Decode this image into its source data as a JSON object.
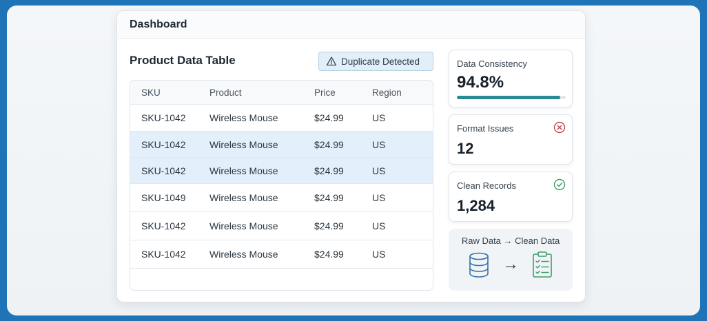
{
  "window": {
    "title": "Dashboard"
  },
  "table": {
    "title": "Product Data Table",
    "badge": "Duplicate Detected",
    "columns": [
      "SKU",
      "Product",
      "Price",
      "Region"
    ],
    "rows": [
      {
        "sku": "SKU-1042",
        "product": "Wireless Mouse",
        "price": "$24.99",
        "region": "US",
        "highlighted": false
      },
      {
        "sku": "SKU-1042",
        "product": "Wireless Mouse",
        "price": "$24.99",
        "region": "US",
        "highlighted": true
      },
      {
        "sku": "SKU-1042",
        "product": "Wireless Mouse",
        "price": "$24.99",
        "region": "US",
        "highlighted": true
      },
      {
        "sku": "SKU-1049",
        "product": "Wireless Mouse",
        "price": "$24.99",
        "region": "US",
        "highlighted": false
      },
      {
        "sku": "SKU-1042",
        "product": "Wireless Mouse",
        "price": "$24.99",
        "region": "US",
        "highlighted": false
      },
      {
        "sku": "SKU-1042",
        "product": "Wireless Mouse",
        "price": "$24.99",
        "region": "US",
        "highlighted": false
      }
    ]
  },
  "cards": {
    "consistency": {
      "label": "Data Consistency",
      "value": "94.8%",
      "progress": 0.948
    },
    "format": {
      "label": "Format Issues",
      "value": "12",
      "icon": "x-circle-icon"
    },
    "clean": {
      "label": "Clean Records",
      "value": "1,284",
      "icon": "check-circle-icon"
    }
  },
  "flow": {
    "label": "Raw Data → Clean Data",
    "from_icon": "database-icon",
    "arrow": "→",
    "to_icon": "clipboard-checklist-icon"
  },
  "colors": {
    "frame": "#1f73b7",
    "highlight_row": "#e3effa",
    "progress": "#2a8a94",
    "error": "#c0474f",
    "success": "#3f9a6a",
    "database_icon": "#3572a8",
    "clipboard_icon": "#3f9a6a"
  }
}
